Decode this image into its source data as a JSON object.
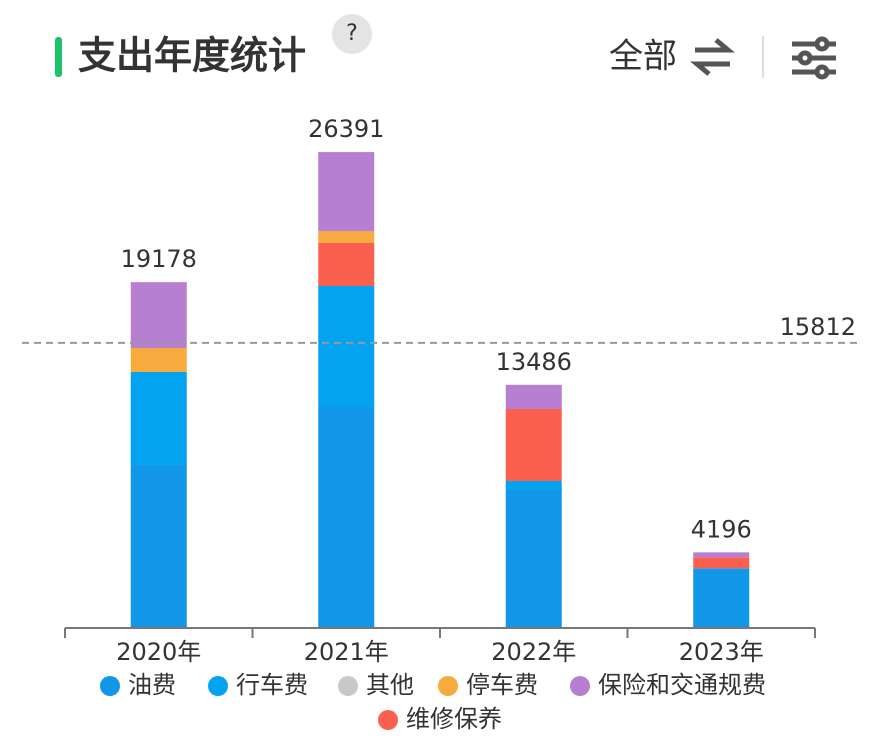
{
  "header": {
    "title": "支出年度统计",
    "help": "?",
    "filter": "全部"
  },
  "chart_data": {
    "type": "stacked_bar",
    "categories": [
      "2020年",
      "2021年",
      "2022年",
      "2023年"
    ],
    "series": [
      {
        "name": "油费",
        "color": "#1296e8",
        "values": [
          9040,
          12255,
          7652,
          3309
        ]
      },
      {
        "name": "行车费",
        "color": "#04a3ef",
        "values": [
          5157,
          6710,
          499,
          0
        ]
      },
      {
        "name": "其他",
        "color": "#c8c8c8",
        "values": [
          0,
          0,
          0,
          0
        ]
      },
      {
        "name": "停车费",
        "color": "#f7ab3e",
        "values": [
          1331,
          665,
          0,
          0
        ]
      },
      {
        "name": "保险和交通规费",
        "color": "#b77fd2",
        "values": [
          3650,
          4377,
          1342,
          277
        ]
      },
      {
        "name": "维修保养",
        "color": "#fb5f4e",
        "values": [
          0,
          2384,
          3993,
          610
        ]
      }
    ],
    "totals": [
      19178,
      26391,
      13486,
      4196
    ],
    "average": 15812,
    "ylim": [
      0,
      30000
    ]
  }
}
